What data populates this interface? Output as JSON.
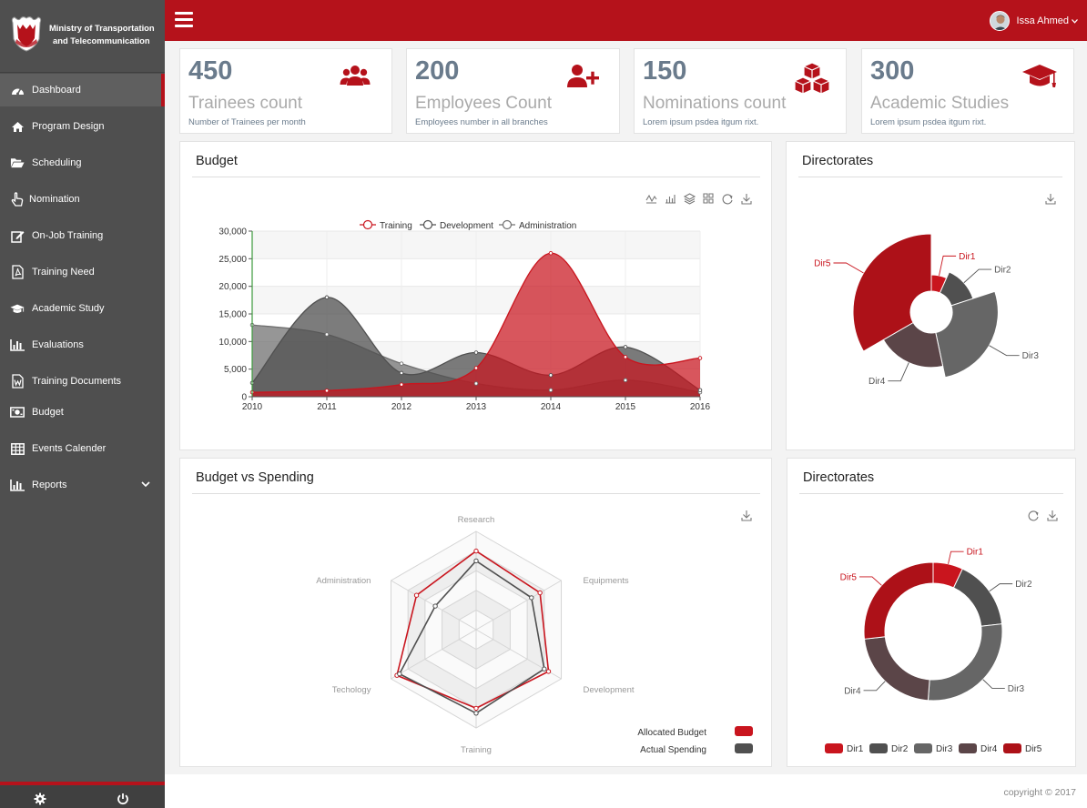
{
  "brand": {
    "line1": "Ministry of Transportation",
    "line2": "and Telecommunication"
  },
  "colors": {
    "primary": "#b5121b",
    "sidebar": "#4f4f4f",
    "muted": "#6a7b8c",
    "accent_red": "#c9151e",
    "dark_gray": "#505050"
  },
  "sidebar": {
    "items": [
      {
        "label": "Dashboard",
        "icon": "dashboard-icon",
        "active": true
      },
      {
        "label": "Program Design",
        "icon": "home-icon"
      },
      {
        "label": "Scheduling",
        "icon": "folder-open-icon"
      },
      {
        "label": "Nomination",
        "icon": "hand-pointer-icon"
      },
      {
        "label": "On-Job Training",
        "icon": "edit-icon"
      },
      {
        "label": "Training Need",
        "icon": "pdf-file-icon"
      },
      {
        "label": "Academic Study",
        "icon": "graduation-cap-icon"
      },
      {
        "label": "Evaluations",
        "icon": "bar-chart-icon"
      },
      {
        "label": "Training Documents",
        "icon": "word-file-icon"
      },
      {
        "label": "Budget",
        "icon": "money-icon"
      },
      {
        "label": "Events Calender",
        "icon": "calendar-grid-icon"
      },
      {
        "label": "Reports",
        "icon": "bar-chart-icon",
        "has_submenu": true
      }
    ]
  },
  "topbar": {
    "user_name": "Issa Ahmed"
  },
  "stats": [
    {
      "number": "450",
      "title": "Trainees count",
      "subtitle": "Number of Trainees per month",
      "icon": "users-icon"
    },
    {
      "number": "200",
      "title": "Employees Count",
      "subtitle": "Employees number in all branches",
      "icon": "user-plus-icon"
    },
    {
      "number": "150",
      "title": "Nominations count",
      "subtitle": "Lorem ipsum psdea itgum rixt.",
      "icon": "cubes-icon"
    },
    {
      "number": "300",
      "title": "Academic Studies",
      "subtitle": "Lorem ipsum psdea itgum rixt.",
      "icon": "graduation-cap-icon"
    }
  ],
  "panels": {
    "budget": "Budget",
    "directorates_1": "Directorates",
    "budget_vs_spending": "Budget vs Spending",
    "directorates_2": "Directorates"
  },
  "footer": {
    "copyright": "copyright © 2017"
  },
  "chart_data": [
    {
      "type": "area",
      "title": "Budget",
      "x": [
        "2010",
        "2011",
        "2012",
        "2013",
        "2014",
        "2015",
        "2016"
      ],
      "ylim": [
        0,
        30000
      ],
      "yticks": [
        "0",
        "5,000",
        "10,000",
        "15,000",
        "20,000",
        "25,000",
        "30,000"
      ],
      "legend": "top",
      "series": [
        {
          "name": "Training",
          "values": [
            800,
            1100,
            2200,
            5200,
            26000,
            7200,
            7000
          ],
          "color": "#c9151e"
        },
        {
          "name": "Development",
          "values": [
            2500,
            18000,
            4300,
            8000,
            3900,
            9000,
            1200
          ],
          "color": "#505050"
        },
        {
          "name": "Administration",
          "values": [
            13000,
            11300,
            6000,
            2400,
            1200,
            3000,
            800
          ],
          "color": "#707070"
        }
      ],
      "toolbox": [
        "line-chart-icon",
        "bar-chart-icon",
        "stack-icon",
        "tiled-icon",
        "refresh-icon",
        "download-icon"
      ]
    },
    {
      "type": "pie",
      "subtype": "rose",
      "title": "Directorates",
      "labels": [
        "Dir1",
        "Dir2",
        "Dir3",
        "Dir4",
        "Dir5"
      ],
      "values": [
        10,
        20,
        40,
        30,
        50
      ],
      "colors": [
        "#c9151e",
        "#505050",
        "#666666",
        "#5b4548",
        "#ad1118"
      ],
      "toolbox": [
        "download-icon"
      ]
    },
    {
      "type": "radar",
      "title": "Budget vs Spending",
      "indicators": [
        "Research",
        "Equipments",
        "Development",
        "Training",
        "Techology",
        "Administration"
      ],
      "rmax": 100,
      "series": [
        {
          "name": "Allocated Budget",
          "values": [
            80,
            75,
            85,
            80,
            93,
            70
          ],
          "color": "#c9151e"
        },
        {
          "name": "Actual Spending",
          "values": [
            70,
            65,
            80,
            85,
            90,
            48
          ],
          "color": "#505050"
        }
      ],
      "legend": "bottom-right",
      "toolbox": [
        "download-icon"
      ]
    },
    {
      "type": "pie",
      "subtype": "donut",
      "title": "Directorates",
      "labels": [
        "Dir1",
        "Dir2",
        "Dir3",
        "Dir4",
        "Dir5"
      ],
      "values": [
        6,
        14,
        24,
        19,
        23
      ],
      "colors": [
        "#c9151e",
        "#505050",
        "#666666",
        "#5b4548",
        "#ad1118"
      ],
      "legend": "bottom",
      "toolbox": [
        "refresh-icon",
        "download-icon"
      ]
    }
  ]
}
